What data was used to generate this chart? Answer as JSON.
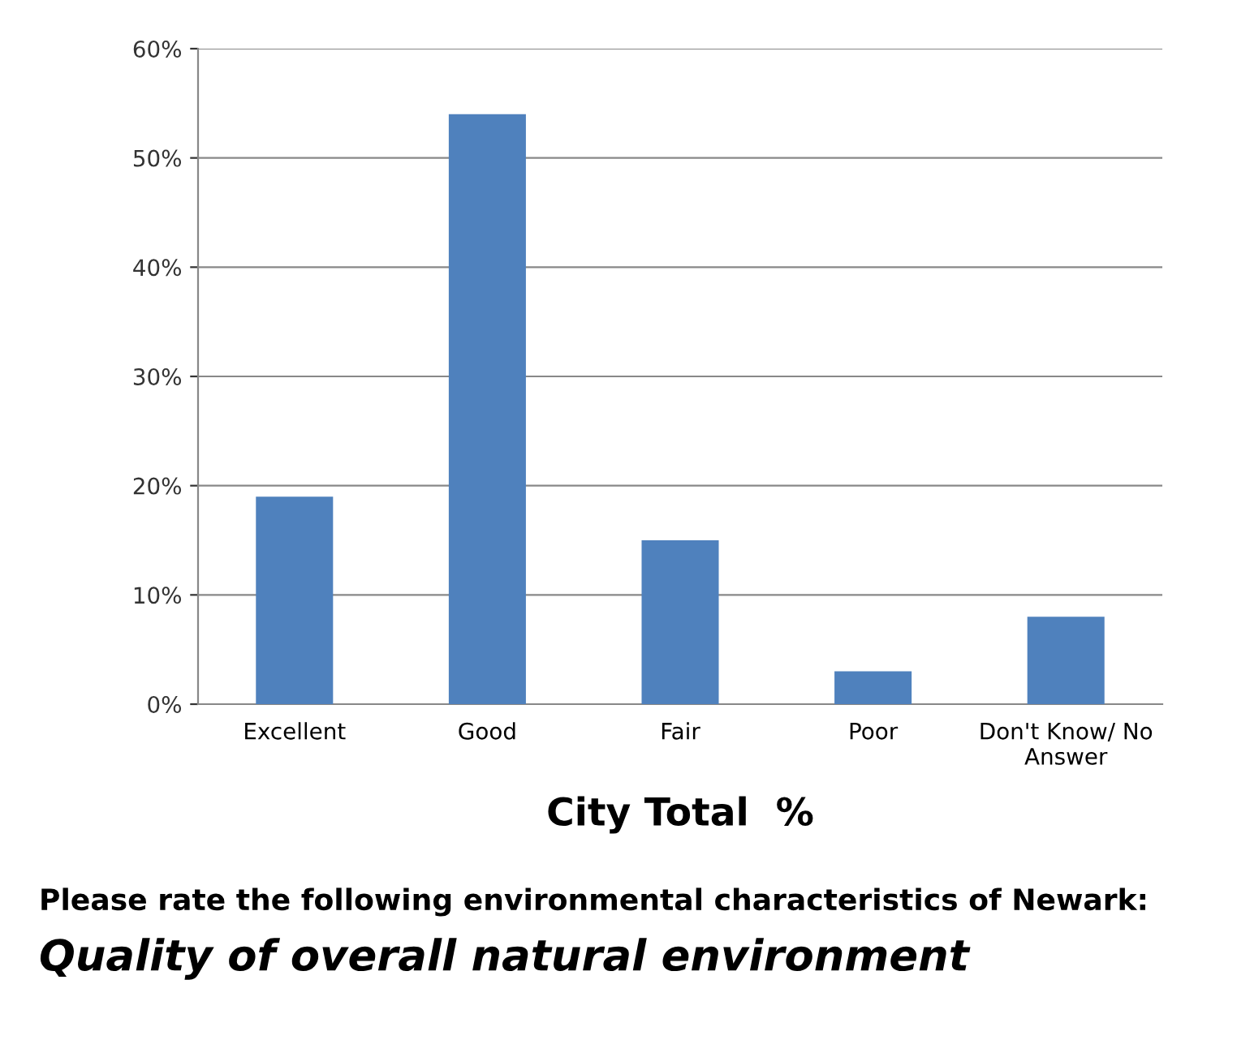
{
  "chart_data": {
    "type": "bar",
    "xlabel": "City Total  %",
    "categories": [
      "Excellent",
      "Good",
      "Fair",
      "Poor",
      "Don't Know/ No Answer"
    ],
    "values": [
      19,
      54,
      15,
      3,
      8
    ],
    "color": "#4f81bd",
    "ylim": [
      0,
      60
    ],
    "yticks": [
      {
        "value": 0,
        "label": "0%"
      },
      {
        "value": 10,
        "label": "10%"
      },
      {
        "value": 20,
        "label": "20%"
      },
      {
        "value": 30,
        "label": "30%"
      },
      {
        "value": 40,
        "label": "40%"
      },
      {
        "value": 50,
        "label": "50%"
      },
      {
        "value": 60,
        "label": "60%"
      }
    ],
    "grid": "y",
    "legend": false,
    "annotations": [
      "Please rate the following environmental characteristics of Newark:",
      "Quality of overall natural environment"
    ]
  }
}
